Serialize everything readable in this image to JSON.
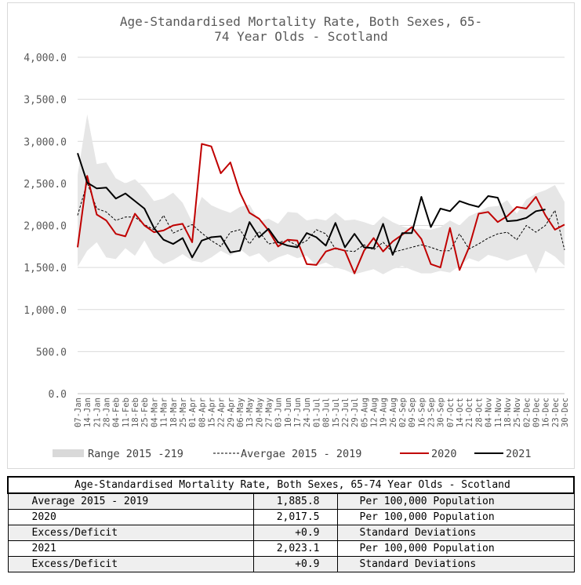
{
  "chart_data": {
    "type": "line",
    "title_line1": "Age-Standardised Mortality Rate, Both Sexes, 65-",
    "title_line2": "74 Year Olds - Scotland",
    "xlabel": "",
    "ylabel": "",
    "ylim": [
      0,
      4000
    ],
    "y_ticks": [
      "0.0",
      "500.0",
      "1,000.0",
      "1,500.0",
      "2,000.0",
      "2,500.0",
      "3,000.0",
      "3,500.0",
      "4,000.0"
    ],
    "grid": "horizontal",
    "legend_position": "bottom",
    "categories": [
      "07-Jan",
      "14-Jan",
      "21-Jan",
      "28-Jan",
      "04-Feb",
      "11-Feb",
      "18-Feb",
      "25-Feb",
      "04-Mar",
      "11-Mar",
      "18-Mar",
      "25-Mar",
      "01-Apr",
      "08-Apr",
      "15-Apr",
      "22-Apr",
      "29-Apr",
      "06-May",
      "13-May",
      "20-May",
      "27-May",
      "03-Jun",
      "10-Jun",
      "17-Jun",
      "24-Jun",
      "01-Jul",
      "08-Jul",
      "15-Jul",
      "22-Jul",
      "29-Jul",
      "05-Aug",
      "12-Aug",
      "19-Aug",
      "26-Aug",
      "02-Sep",
      "09-Sep",
      "16-Sep",
      "23-Sep",
      "30-Sep",
      "07-Oct",
      "14-Oct",
      "21-Oct",
      "28-Oct",
      "04-Nov",
      "11-Nov",
      "18-Nov",
      "25-Nov",
      "02-Dec",
      "09-Dec",
      "16-Dec",
      "23-Dec",
      "30-Dec"
    ],
    "x_tick_labels": [
      "07-Jan",
      "14-Jan",
      "21-Jan",
      "28-Jan",
      "04-Feb",
      "11-Feb",
      "18-Feb",
      "25-Feb",
      "04-Mar",
      "11-Mar",
      "18-Mar",
      "25-Mar",
      "01-Apr",
      "08-Apr",
      "15-Apr",
      "22-Apr",
      "29-Apr",
      "06-May",
      "13-May",
      "20-May",
      "27-May",
      "03-Jun",
      "10-Jun",
      "17-Jun",
      "24-Jun",
      "01-Jul",
      "08-Jul",
      "15-Jul",
      "22-Jul",
      "29-Jul",
      "05-Aug",
      "12-Aug",
      "19-Aug",
      "26-Aug",
      "02-Sep",
      "09-Sep",
      "16-Sep",
      "23-Sep",
      "30-Sep",
      "07-Oct",
      "14-Oct",
      "21-Oct",
      "28-Oct",
      "04-Nov",
      "11-Nov",
      "18-Nov",
      "25-Nov",
      "02-Dec",
      "09-Dec",
      "16-Dec",
      "23-Dec",
      "30-Dec"
    ],
    "range": {
      "name": "Range 2015 -219",
      "color": "#e6e6e6",
      "low": [
        1510,
        1700,
        1800,
        1620,
        1600,
        1730,
        1640,
        1820,
        1620,
        1540,
        1590,
        1660,
        1580,
        1560,
        1620,
        1700,
        1640,
        1720,
        1630,
        1670,
        1560,
        1620,
        1660,
        1610,
        1640,
        1520,
        1560,
        1500,
        1470,
        1420,
        1450,
        1480,
        1420,
        1480,
        1520,
        1470,
        1430,
        1430,
        1460,
        1440,
        1520,
        1610,
        1570,
        1650,
        1620,
        1580,
        1620,
        1660,
        1430,
        1700,
        1630,
        1520
      ],
      "high": [
        2600,
        3320,
        2730,
        2750,
        2560,
        2500,
        2550,
        2440,
        2290,
        2320,
        2390,
        2270,
        2040,
        2340,
        2240,
        2190,
        2150,
        2220,
        2250,
        2050,
        2080,
        2020,
        2160,
        2150,
        2060,
        2080,
        2060,
        2150,
        2060,
        2070,
        2040,
        2000,
        2110,
        2040,
        1990,
        1960,
        1960,
        1950,
        1980,
        2060,
        2000,
        2110,
        2160,
        2220,
        2230,
        2300,
        2140,
        2310,
        2380,
        2420,
        2480,
        2280
      ]
    },
    "series": [
      {
        "name": "Avergae 2015 - 2019",
        "color": "#000000",
        "dash": "3,2",
        "width": 1,
        "values": [
          2120,
          2510,
          2200,
          2160,
          2060,
          2100,
          2100,
          2010,
          1950,
          2120,
          1910,
          1960,
          2010,
          1910,
          1820,
          1750,
          1920,
          1950,
          1780,
          1930,
          1780,
          1800,
          1820,
          1760,
          1820,
          1950,
          1900,
          1720,
          1700,
          1690,
          1770,
          1710,
          1800,
          1680,
          1710,
          1740,
          1770,
          1740,
          1700,
          1700,
          1900,
          1720,
          1780,
          1850,
          1900,
          1920,
          1830,
          2000,
          1920,
          2000,
          2180,
          1710
        ]
      },
      {
        "name": "2020",
        "color": "#c00000",
        "dash": "",
        "width": 2,
        "values": [
          1740,
          2590,
          2130,
          2060,
          1900,
          1870,
          2140,
          2000,
          1920,
          1940,
          2000,
          2020,
          1800,
          2970,
          2940,
          2620,
          2750,
          2390,
          2150,
          2080,
          1940,
          1750,
          1830,
          1820,
          1540,
          1530,
          1690,
          1730,
          1700,
          1430,
          1700,
          1850,
          1690,
          1810,
          1890,
          1980,
          1840,
          1540,
          1500,
          1970,
          1470,
          1740,
          2140,
          2160,
          2040,
          2110,
          2220,
          2200,
          2340,
          2120,
          1950,
          2010
        ]
      },
      {
        "name": "2021",
        "color": "#000000",
        "dash": "",
        "width": 2,
        "values": [
          2860,
          2510,
          2440,
          2450,
          2320,
          2380,
          2290,
          2200,
          1970,
          1830,
          1780,
          1850,
          1620,
          1820,
          1860,
          1870,
          1680,
          1700,
          2040,
          1860,
          1960,
          1800,
          1760,
          1740,
          1910,
          1860,
          1760,
          2030,
          1740,
          1900,
          1740,
          1730,
          2020,
          1650,
          1910,
          1910,
          2340,
          1980,
          2200,
          2170,
          2290,
          2250,
          2220,
          2350,
          2330,
          2050,
          2060,
          2090,
          2170,
          2190,
          null,
          null
        ]
      }
    ]
  },
  "summary_table": {
    "title": "Age-Standardised Mortality Rate, Both Sexes, 65-74 Year Olds - Scotland",
    "rows": [
      {
        "label": "Average 2015 - 2019",
        "value": "1,885.8",
        "unit": "Per 100,000 Population"
      },
      {
        "label": "2020",
        "value": "2,017.5",
        "unit": "Per 100,000 Population"
      },
      {
        "label": "Excess/Deficit",
        "value": "+0.9",
        "unit": "Standard Deviations"
      },
      {
        "label": "2021",
        "value": "2,023.1",
        "unit": "Per 100,000 Population"
      },
      {
        "label": "Excess/Deficit",
        "value": "+0.9",
        "unit": "Standard Deviations"
      }
    ]
  }
}
